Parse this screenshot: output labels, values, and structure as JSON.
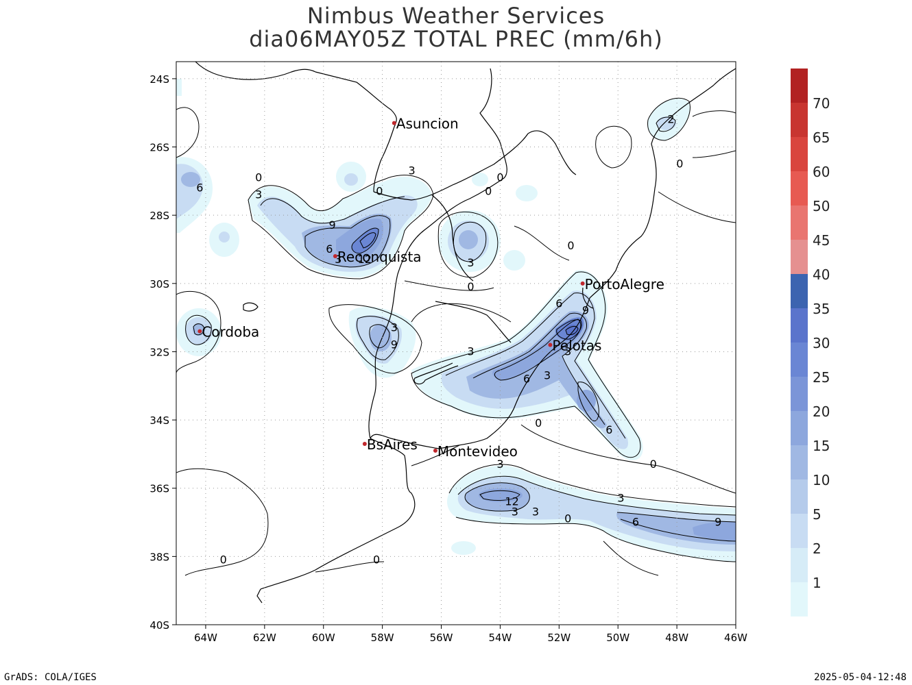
{
  "title": {
    "line1": "Nimbus Weather Services",
    "line2": "dia06MAY05Z TOTAL PREC (mm/6h)"
  },
  "footer": {
    "left": "GrADS: COLA/IGES",
    "right": "2025-05-04-12:48"
  },
  "map": {
    "lon_range": [
      -65,
      -46
    ],
    "lat_range": [
      -40,
      -23.5
    ],
    "lon_ticks": [
      "64W",
      "62W",
      "60W",
      "58W",
      "56W",
      "54W",
      "52W",
      "50W",
      "48W",
      "46W"
    ],
    "lat_ticks": [
      "24S",
      "26S",
      "28S",
      "30S",
      "32S",
      "34S",
      "36S",
      "38S",
      "40S"
    ],
    "cities": [
      {
        "name": "Asuncion",
        "lon": -57.6,
        "lat": -25.3
      },
      {
        "name": "Reconquista",
        "lon": -59.6,
        "lat": -29.2
      },
      {
        "name": "PortoAlegre",
        "lon": -51.2,
        "lat": -30.0
      },
      {
        "name": "Cordoba",
        "lon": -64.2,
        "lat": -31.4
      },
      {
        "name": "Pelotas",
        "lon": -52.3,
        "lat": -31.8
      },
      {
        "name": "BsAires",
        "lon": -58.6,
        "lat": -34.7
      },
      {
        "name": "Montevideo",
        "lon": -56.2,
        "lat": -34.9
      }
    ],
    "contour_labels": [
      {
        "text": "0",
        "lon": -62.2,
        "lat": -27.0
      },
      {
        "text": "3",
        "lon": -62.2,
        "lat": -27.5
      },
      {
        "text": "6",
        "lon": -64.2,
        "lat": -27.3
      },
      {
        "text": "3",
        "lon": -57.0,
        "lat": -26.8
      },
      {
        "text": "0",
        "lon": -58.1,
        "lat": -27.4
      },
      {
        "text": "0",
        "lon": -54.0,
        "lat": -27.0
      },
      {
        "text": "0",
        "lon": -54.4,
        "lat": -27.4
      },
      {
        "text": "9",
        "lon": -59.7,
        "lat": -28.4
      },
      {
        "text": "6",
        "lon": -59.8,
        "lat": -29.1
      },
      {
        "text": "3",
        "lon": -59.5,
        "lat": -29.4
      },
      {
        "text": "12",
        "lon": -58.6,
        "lat": -29.4
      },
      {
        "text": "3",
        "lon": -55.0,
        "lat": -29.5
      },
      {
        "text": "0",
        "lon": -51.6,
        "lat": -29.0
      },
      {
        "text": "0",
        "lon": -55.0,
        "lat": -30.2
      },
      {
        "text": "3",
        "lon": -57.6,
        "lat": -31.4
      },
      {
        "text": "9",
        "lon": -57.6,
        "lat": -31.9
      },
      {
        "text": "6",
        "lon": -52.0,
        "lat": -30.7
      },
      {
        "text": "9",
        "lon": -51.1,
        "lat": -30.9
      },
      {
        "text": "3",
        "lon": -51.7,
        "lat": -32.1
      },
      {
        "text": "3",
        "lon": -55.0,
        "lat": -32.1
      },
      {
        "text": "3",
        "lon": -52.4,
        "lat": -32.8
      },
      {
        "text": "6",
        "lon": -53.1,
        "lat": -32.9
      },
      {
        "text": "3",
        "lon": -54.0,
        "lat": -35.4
      },
      {
        "text": "0",
        "lon": -52.7,
        "lat": -34.2
      },
      {
        "text": "6",
        "lon": -50.3,
        "lat": -34.4
      },
      {
        "text": "0",
        "lon": -48.8,
        "lat": -35.4
      },
      {
        "text": "12",
        "lon": -53.6,
        "lat": -36.5
      },
      {
        "text": "3",
        "lon": -53.5,
        "lat": -36.8
      },
      {
        "text": "3",
        "lon": -52.8,
        "lat": -36.8
      },
      {
        "text": "0",
        "lon": -51.7,
        "lat": -37.0
      },
      {
        "text": "3",
        "lon": -49.9,
        "lat": -36.4
      },
      {
        "text": "6",
        "lon": -49.4,
        "lat": -37.1
      },
      {
        "text": "9",
        "lon": -46.6,
        "lat": -37.1
      },
      {
        "text": "0",
        "lon": -63.4,
        "lat": -38.2
      },
      {
        "text": "0",
        "lon": -58.2,
        "lat": -38.2
      },
      {
        "text": "2",
        "lon": -48.2,
        "lat": -25.3
      },
      {
        "text": "0",
        "lon": -47.9,
        "lat": -26.6
      }
    ]
  },
  "colorbar": {
    "labels": [
      "70",
      "65",
      "60",
      "50",
      "45",
      "40",
      "35",
      "30",
      "25",
      "20",
      "15",
      "10",
      "5",
      "2",
      "1"
    ],
    "colors": [
      "#b22222",
      "#c83530",
      "#d9453e",
      "#e75a52",
      "#e97570",
      "#e59090",
      "#3c64b0",
      "#5a74cc",
      "#6a86d4",
      "#7b95d8",
      "#8da7dd",
      "#a0b8e3",
      "#b5cbeb",
      "#c8dcf3",
      "#d6ecf7",
      "#e2f7fb"
    ]
  }
}
